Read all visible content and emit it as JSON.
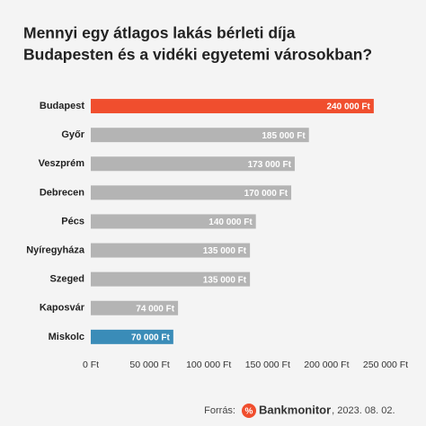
{
  "chart_data": {
    "type": "bar",
    "orientation": "horizontal",
    "title": [
      "Mennyi egy átlagos lakás bérleti díja",
      "Budapesten és a vidéki egyetemi városokban?"
    ],
    "categories": [
      "Budapest",
      "Győr",
      "Veszprém",
      "Debrecen",
      "Pécs",
      "Nyíregyháza",
      "Szeged",
      "Kaposvár",
      "Miskolc"
    ],
    "values": [
      240000,
      185000,
      173000,
      170000,
      140000,
      135000,
      135000,
      74000,
      70000
    ],
    "value_labels": [
      "240 000 Ft",
      "185 000 Ft",
      "173 000 Ft",
      "170 000 Ft",
      "140 000 Ft",
      "135 000 Ft",
      "135 000 Ft",
      "74 000 Ft",
      "70 000 Ft"
    ],
    "colors": [
      "#f04e2e",
      "#b4b4b4",
      "#b4b4b4",
      "#b4b4b4",
      "#b4b4b4",
      "#b4b4b4",
      "#b4b4b4",
      "#b4b4b4",
      "#3a8cb8"
    ],
    "xlim": [
      0,
      250000
    ],
    "xticks": [
      {
        "value": 0,
        "label": "0 Ft"
      },
      {
        "value": 50000,
        "label": "50 000 Ft"
      },
      {
        "value": 100000,
        "label": "100 000 Ft"
      },
      {
        "value": 150000,
        "label": "150 000 Ft"
      },
      {
        "value": 200000,
        "label": "200 000 Ft"
      },
      {
        "value": 250000,
        "label": "250 000 Ft"
      }
    ],
    "grid": false,
    "source_label": "Forrás:",
    "source_name": "Bankmonitor",
    "source_date": ", 2023. 08. 02."
  }
}
